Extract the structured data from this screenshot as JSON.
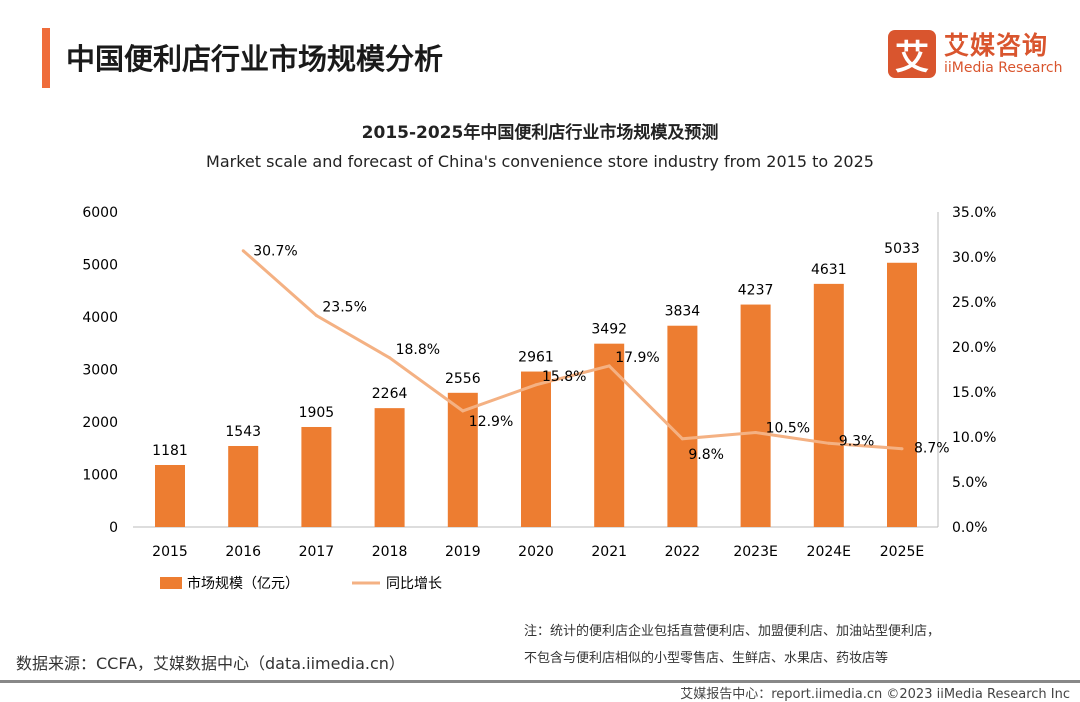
{
  "header": {
    "title": "中国便利店行业市场规模分析",
    "logo_mark": "艾",
    "logo_cn": "艾媒咨询",
    "logo_en": "iiMedia Research"
  },
  "chart_data": {
    "type": "bar+line",
    "title": "2015-2025年中国便利店行业市场规模及预测",
    "subtitle": "Market scale and forecast of China's convenience store industry from 2015 to 2025",
    "categories": [
      "2015",
      "2016",
      "2017",
      "2018",
      "2019",
      "2020",
      "2021",
      "2022",
      "2023E",
      "2024E",
      "2025E"
    ],
    "series": [
      {
        "name": "市场规模（亿元）",
        "type": "bar",
        "axis": "left",
        "color": "#ed7d31",
        "values": [
          1181,
          1543,
          1905,
          2264,
          2556,
          2961,
          3492,
          3834,
          4237,
          4631,
          5033
        ]
      },
      {
        "name": "同比增长",
        "type": "line",
        "axis": "right",
        "color": "#f4b183",
        "values": [
          null,
          30.7,
          23.5,
          18.8,
          12.9,
          15.8,
          17.9,
          9.8,
          10.5,
          9.3,
          8.7
        ]
      }
    ],
    "left_axis": {
      "ylim": [
        0,
        6000
      ],
      "ticks": [
        "0",
        "1000",
        "2000",
        "3000",
        "4000",
        "5000",
        "6000"
      ]
    },
    "right_axis": {
      "ylim": [
        0,
        35
      ],
      "ticks": [
        "0.0%",
        "5.0%",
        "10.0%",
        "15.0%",
        "20.0%",
        "25.0%",
        "30.0%",
        "35.0%"
      ]
    },
    "grid": false,
    "legend": "bottom"
  },
  "footer": {
    "source": "数据来源：CCFA，艾媒数据中心（data.iimedia.cn）",
    "note_line1": "注：统计的便利店企业包括直营便利店、加盟便利店、加油站型便利店，",
    "note_line2": "不包含与便利店相似的小型零售店、生鲜店、水果店、药妆店等",
    "copyright": "艾媒报告中心：report.iimedia.cn  ©2023  iiMedia Research Inc"
  }
}
